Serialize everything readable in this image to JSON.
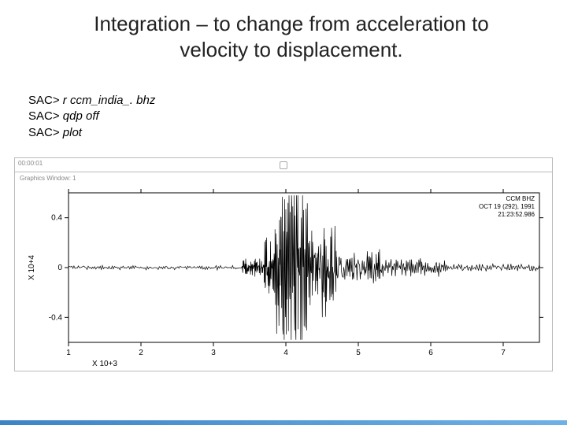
{
  "title_line1": "Integration – to change from acceleration to",
  "title_line2": "velocity to displacement.",
  "commands": [
    {
      "prompt": "SAC>",
      "args": " r ccm_india_. bhz"
    },
    {
      "prompt": "SAC>",
      "args": " qdp off"
    },
    {
      "prompt": "SAC>",
      "args": " plot"
    }
  ],
  "window": {
    "title_left": "00:00:01",
    "title_center_glyph": "◊",
    "subtitle": "Graphics Window: 1"
  },
  "plot": {
    "type": "line",
    "xlim": [
      1,
      7.5
    ],
    "ylim": [
      -0.6,
      0.6
    ],
    "xticks": [
      1,
      2,
      3,
      4,
      5,
      6,
      7
    ],
    "yticks": [
      -0.4,
      0,
      0.4
    ],
    "ytick_labels": [
      "-0.4",
      "0",
      "0.4"
    ],
    "ylabel": "X 10+4",
    "xlabel": "X 10+3",
    "axis_color": "#000000",
    "line_color": "#000000",
    "line_width": 0.7,
    "background_color": "#ffffff",
    "tick_fontsize": 10,
    "label_fontsize": 10,
    "legend_lines": [
      "CCM  BHZ",
      "OCT 19 (292), 1991",
      "21:23:52.986"
    ],
    "legend_fontsize": 8,
    "data": {
      "segments": [
        {
          "x0": 1.0,
          "x1": 3.4,
          "base": 0.0,
          "amp": 0.015,
          "n": 160,
          "freq": 40
        },
        {
          "x0": 3.4,
          "x1": 3.7,
          "base": 0.0,
          "amp": 0.06,
          "n": 60,
          "freq": 55
        },
        {
          "x0": 3.7,
          "x1": 3.85,
          "base": 0.0,
          "amp": 0.2,
          "n": 40,
          "freq": 70
        },
        {
          "x0": 3.85,
          "x1": 4.0,
          "base": 0.0,
          "amp": 0.52,
          "n": 40,
          "freq": 80
        },
        {
          "x0": 4.0,
          "x1": 4.3,
          "base": 0.0,
          "amp": 0.6,
          "n": 70,
          "freq": 75
        },
        {
          "x0": 4.3,
          "x1": 4.7,
          "base": 0.0,
          "amp": 0.32,
          "n": 70,
          "freq": 60
        },
        {
          "x0": 4.7,
          "x1": 5.3,
          "base": 0.0,
          "amp": 0.14,
          "n": 80,
          "freq": 45
        },
        {
          "x0": 5.3,
          "x1": 6.2,
          "base": 0.0,
          "amp": 0.06,
          "n": 90,
          "freq": 35
        },
        {
          "x0": 6.2,
          "x1": 7.5,
          "base": 0.0,
          "amp": 0.025,
          "n": 100,
          "freq": 28
        }
      ]
    }
  },
  "colors": {
    "title": "#222222",
    "text": "#000000",
    "border": "#bbbbbb",
    "win_text": "#888888",
    "decor_start": "#3d84c6",
    "decor_end": "#6fb1e6"
  }
}
